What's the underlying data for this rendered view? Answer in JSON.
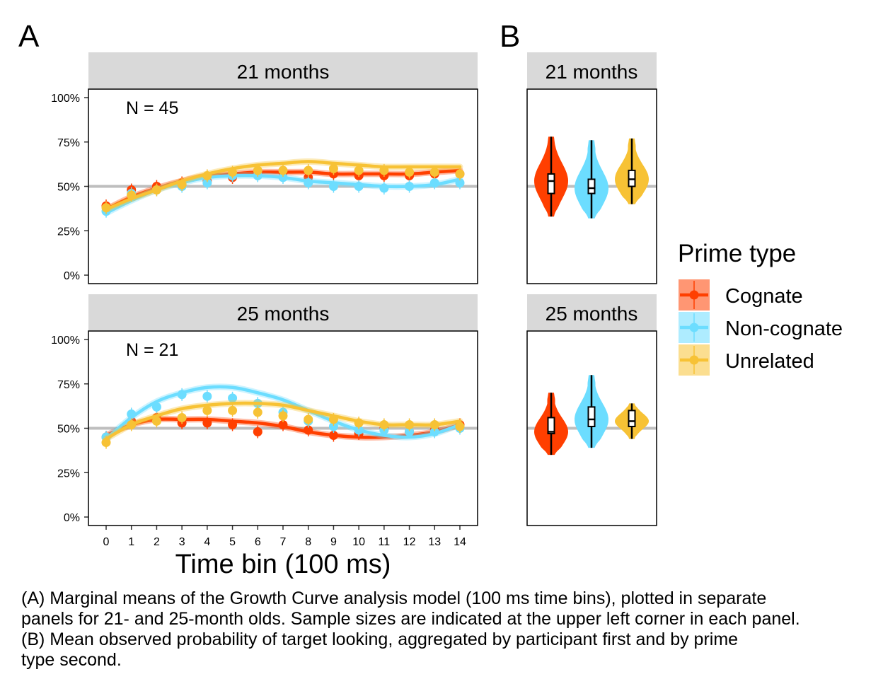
{
  "panel_labels": {
    "a": "A",
    "b": "B"
  },
  "facets": [
    "21 months",
    "25 months"
  ],
  "sample_sizes": [
    "N = 45",
    "N = 21"
  ],
  "y_ticks": [
    "0%",
    "25%",
    "50%",
    "75%",
    "100%"
  ],
  "x_ticks": [
    "0",
    "1",
    "2",
    "3",
    "4",
    "5",
    "6",
    "7",
    "8",
    "9",
    "10",
    "11",
    "12",
    "13",
    "14"
  ],
  "x_axis_title": "Time bin (100 ms)",
  "legend": {
    "title": "Prime type",
    "items": [
      "Cognate",
      "Non-cognate",
      "Unrelated"
    ]
  },
  "colors": {
    "Cognate": "#FF3F00",
    "Non-cognate": "#6CDDFF",
    "Unrelated": "#F7C235",
    "reference_line": "#BEBEBE",
    "strip_bg": "#D9D9D9"
  },
  "caption": [
    "(A) Marginal means of the Growth Curve analysis model (100 ms time bins), plotted in separate",
    "panels for 21- and 25-month olds. Sample sizes are indicated at the upper left corner in each panel.",
    "(B) Mean observed probability of target looking, aggregated by participant first and by prime",
    "type second."
  ],
  "chart_data": [
    {
      "type": "line",
      "panel": "A",
      "facet": "21 months",
      "x": [
        0,
        1,
        2,
        3,
        4,
        5,
        6,
        7,
        8,
        9,
        10,
        11,
        12,
        13,
        14
      ],
      "ylim": [
        0,
        1
      ],
      "reference_line": 0.5,
      "series": [
        {
          "name": "Cognate",
          "observed": [
            0.39,
            0.48,
            0.5,
            0.52,
            0.53,
            0.55,
            0.58,
            0.58,
            0.55,
            0.57,
            0.56,
            0.56,
            0.56,
            0.57,
            0.57
          ],
          "fitted": [
            0.37,
            0.44,
            0.49,
            0.53,
            0.56,
            0.57,
            0.58,
            0.58,
            0.58,
            0.57,
            0.57,
            0.57,
            0.57,
            0.58,
            0.59
          ]
        },
        {
          "name": "Non-cognate",
          "observed": [
            0.36,
            0.46,
            0.48,
            0.5,
            0.52,
            0.56,
            0.56,
            0.55,
            0.52,
            0.5,
            0.5,
            0.49,
            0.5,
            0.52,
            0.52
          ],
          "fitted": [
            0.35,
            0.42,
            0.48,
            0.52,
            0.55,
            0.56,
            0.56,
            0.55,
            0.53,
            0.52,
            0.51,
            0.5,
            0.5,
            0.51,
            0.54
          ]
        },
        {
          "name": "Unrelated",
          "observed": [
            0.38,
            0.45,
            0.48,
            0.51,
            0.56,
            0.58,
            0.59,
            0.59,
            0.59,
            0.6,
            0.59,
            0.59,
            0.58,
            0.58,
            0.57
          ],
          "fitted": [
            0.37,
            0.43,
            0.48,
            0.53,
            0.57,
            0.6,
            0.62,
            0.63,
            0.64,
            0.63,
            0.62,
            0.61,
            0.61,
            0.61,
            0.61
          ]
        }
      ]
    },
    {
      "type": "line",
      "panel": "A",
      "facet": "25 months",
      "x": [
        0,
        1,
        2,
        3,
        4,
        5,
        6,
        7,
        8,
        9,
        10,
        11,
        12,
        13,
        14
      ],
      "ylim": [
        0,
        1
      ],
      "reference_line": 0.5,
      "series": [
        {
          "name": "Cognate",
          "observed": [
            0.45,
            0.54,
            0.56,
            0.53,
            0.53,
            0.52,
            0.48,
            0.52,
            0.49,
            0.46,
            0.47,
            0.5,
            0.48,
            0.49,
            0.52
          ],
          "fitted": [
            0.46,
            0.52,
            0.55,
            0.55,
            0.55,
            0.54,
            0.53,
            0.51,
            0.48,
            0.46,
            0.45,
            0.45,
            0.46,
            0.48,
            0.52
          ]
        },
        {
          "name": "Non-cognate",
          "observed": [
            0.45,
            0.58,
            0.62,
            0.69,
            0.68,
            0.67,
            0.64,
            0.59,
            0.54,
            0.51,
            0.49,
            0.49,
            0.48,
            0.48,
            0.5
          ],
          "fitted": [
            0.44,
            0.56,
            0.65,
            0.7,
            0.73,
            0.73,
            0.7,
            0.66,
            0.6,
            0.54,
            0.49,
            0.46,
            0.45,
            0.47,
            0.52
          ]
        },
        {
          "name": "Unrelated",
          "observed": [
            0.42,
            0.52,
            0.54,
            0.56,
            0.6,
            0.6,
            0.59,
            0.57,
            0.55,
            0.55,
            0.53,
            0.52,
            0.52,
            0.52,
            0.51
          ],
          "fitted": [
            0.44,
            0.52,
            0.57,
            0.61,
            0.63,
            0.64,
            0.64,
            0.63,
            0.6,
            0.57,
            0.54,
            0.52,
            0.52,
            0.52,
            0.54
          ]
        }
      ]
    },
    {
      "type": "violin",
      "panel": "B",
      "facet": "21 months",
      "ylim": [
        0,
        1
      ],
      "reference_line": 0.5,
      "categories": [
        "Cognate",
        "Non-cognate",
        "Unrelated"
      ],
      "series": [
        {
          "name": "Cognate",
          "min": 0.33,
          "q1": 0.46,
          "median": 0.53,
          "q3": 0.57,
          "max": 0.78
        },
        {
          "name": "Non-cognate",
          "min": 0.32,
          "q1": 0.46,
          "median": 0.49,
          "q3": 0.54,
          "max": 0.76
        },
        {
          "name": "Unrelated",
          "min": 0.4,
          "q1": 0.5,
          "median": 0.54,
          "q3": 0.59,
          "max": 0.77
        }
      ]
    },
    {
      "type": "violin",
      "panel": "B",
      "facet": "25 months",
      "ylim": [
        0,
        1
      ],
      "reference_line": 0.5,
      "categories": [
        "Cognate",
        "Non-cognate",
        "Unrelated"
      ],
      "series": [
        {
          "name": "Cognate",
          "min": 0.35,
          "q1": 0.47,
          "median": 0.48,
          "q3": 0.56,
          "max": 0.7
        },
        {
          "name": "Non-cognate",
          "min": 0.39,
          "q1": 0.51,
          "median": 0.55,
          "q3": 0.62,
          "max": 0.8
        },
        {
          "name": "Unrelated",
          "min": 0.44,
          "q1": 0.51,
          "median": 0.54,
          "q3": 0.6,
          "max": 0.64
        }
      ]
    }
  ]
}
